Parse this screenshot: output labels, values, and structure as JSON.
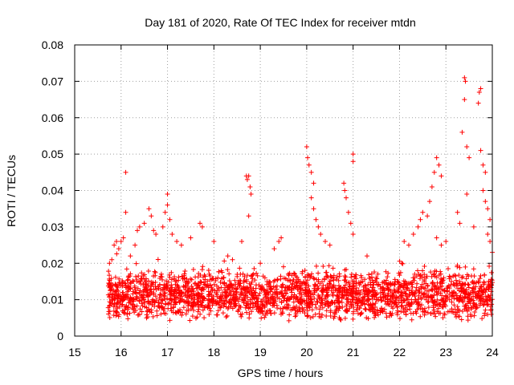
{
  "chart_data": {
    "type": "scatter",
    "title": "Day 181 of 2020, Rate Of TEC Index for receiver mtdn",
    "xlabel": "GPS time / hours",
    "ylabel": "ROTI / TECUs",
    "xlim": [
      15,
      24
    ],
    "ylim": [
      0,
      0.08
    ],
    "xticks": [
      "15",
      "16",
      "17",
      "18",
      "19",
      "20",
      "21",
      "22",
      "23",
      "24"
    ],
    "yticks": [
      "0",
      "0.01",
      "0.02",
      "0.03",
      "0.04",
      "0.05",
      "0.06",
      "0.07",
      "0.08"
    ],
    "grid": true,
    "marker": "+",
    "color": "#ff0000",
    "series": [
      {
        "name": "ROTI",
        "baseline_band": {
          "x_start": 15.72,
          "x_end": 24.0,
          "typical_min": 0.004,
          "typical_max": 0.018
        },
        "points": [
          [
            15.75,
            0.02
          ],
          [
            15.8,
            0.021
          ],
          [
            15.85,
            0.025
          ],
          [
            15.9,
            0.026
          ],
          [
            15.95,
            0.024
          ],
          [
            16.0,
            0.026
          ],
          [
            16.05,
            0.027
          ],
          [
            16.1,
            0.045
          ],
          [
            16.1,
            0.034
          ],
          [
            16.2,
            0.022
          ],
          [
            16.3,
            0.025
          ],
          [
            16.35,
            0.029
          ],
          [
            16.4,
            0.03
          ],
          [
            16.5,
            0.031
          ],
          [
            16.6,
            0.035
          ],
          [
            16.65,
            0.033
          ],
          [
            16.7,
            0.029
          ],
          [
            16.75,
            0.028
          ],
          [
            16.9,
            0.03
          ],
          [
            16.95,
            0.034
          ],
          [
            17.0,
            0.039
          ],
          [
            17.0,
            0.036
          ],
          [
            17.05,
            0.032
          ],
          [
            17.1,
            0.028
          ],
          [
            17.2,
            0.026
          ],
          [
            17.3,
            0.025
          ],
          [
            17.5,
            0.027
          ],
          [
            17.7,
            0.031
          ],
          [
            17.75,
            0.03
          ],
          [
            18.0,
            0.026
          ],
          [
            18.3,
            0.022
          ],
          [
            18.4,
            0.021
          ],
          [
            18.6,
            0.026
          ],
          [
            18.7,
            0.044
          ],
          [
            18.72,
            0.043
          ],
          [
            18.75,
            0.044
          ],
          [
            18.78,
            0.041
          ],
          [
            18.8,
            0.039
          ],
          [
            18.75,
            0.033
          ],
          [
            19.0,
            0.02
          ],
          [
            19.3,
            0.024
          ],
          [
            19.4,
            0.026
          ],
          [
            19.45,
            0.027
          ],
          [
            20.0,
            0.052
          ],
          [
            20.02,
            0.049
          ],
          [
            20.05,
            0.047
          ],
          [
            20.1,
            0.045
          ],
          [
            20.15,
            0.042
          ],
          [
            20.1,
            0.038
          ],
          [
            20.15,
            0.035
          ],
          [
            20.2,
            0.032
          ],
          [
            20.25,
            0.03
          ],
          [
            20.3,
            0.028
          ],
          [
            20.4,
            0.026
          ],
          [
            20.5,
            0.025
          ],
          [
            20.8,
            0.042
          ],
          [
            20.82,
            0.04
          ],
          [
            20.85,
            0.038
          ],
          [
            20.9,
            0.034
          ],
          [
            21.0,
            0.05
          ],
          [
            21.0,
            0.048
          ],
          [
            20.95,
            0.031
          ],
          [
            21.0,
            0.028
          ],
          [
            21.3,
            0.022
          ],
          [
            22.1,
            0.026
          ],
          [
            22.2,
            0.025
          ],
          [
            22.3,
            0.028
          ],
          [
            22.4,
            0.03
          ],
          [
            22.45,
            0.032
          ],
          [
            22.5,
            0.034
          ],
          [
            22.6,
            0.033
          ],
          [
            22.65,
            0.037
          ],
          [
            22.7,
            0.041
          ],
          [
            22.75,
            0.045
          ],
          [
            22.8,
            0.049
          ],
          [
            22.85,
            0.047
          ],
          [
            22.9,
            0.044
          ],
          [
            22.8,
            0.027
          ],
          [
            22.9,
            0.025
          ],
          [
            23.0,
            0.026
          ],
          [
            23.25,
            0.034
          ],
          [
            23.3,
            0.031
          ],
          [
            23.35,
            0.056
          ],
          [
            23.4,
            0.071
          ],
          [
            23.42,
            0.07
          ],
          [
            23.4,
            0.065
          ],
          [
            23.45,
            0.052
          ],
          [
            23.5,
            0.049
          ],
          [
            23.45,
            0.039
          ],
          [
            23.6,
            0.03
          ],
          [
            23.75,
            0.068
          ],
          [
            23.72,
            0.067
          ],
          [
            23.7,
            0.064
          ],
          [
            23.75,
            0.051
          ],
          [
            23.8,
            0.047
          ],
          [
            23.85,
            0.045
          ],
          [
            23.8,
            0.04
          ],
          [
            23.85,
            0.037
          ],
          [
            23.9,
            0.035
          ],
          [
            23.95,
            0.032
          ],
          [
            23.9,
            0.028
          ],
          [
            23.95,
            0.026
          ],
          [
            24.0,
            0.023
          ]
        ]
      }
    ]
  }
}
